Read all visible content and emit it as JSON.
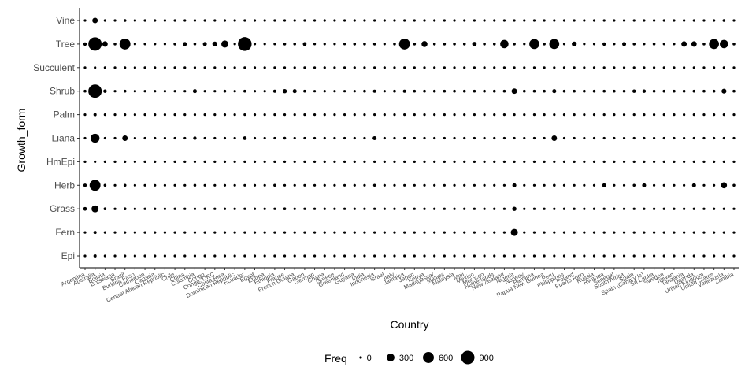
{
  "chart_data": {
    "type": "scatter",
    "xlabel": "Country",
    "ylabel": "Growth_form",
    "categories": [
      "Argentina",
      "Australia",
      "Bolivia",
      "Botswana",
      "Brazil",
      "Burkina Faso",
      "Cameroon",
      "Canada",
      "Central African Republic",
      "Chile",
      "China",
      "Colombia",
      "Congo",
      "Congo, DRC",
      "Costa Rica",
      "Dominican Republic",
      "Ecuador",
      "Egypt",
      "Eritrea",
      "Ethiopia",
      "France",
      "French Guiana",
      "Gabon",
      "German",
      "Ghana",
      "Greece",
      "Greenland",
      "Guyana",
      "India",
      "Indonesia",
      "Israel",
      "Italy",
      "Jamaica",
      "Japan",
      "Kenya",
      "Madagascar",
      "Malawi",
      "Malaysia",
      "Mali",
      "Mexico",
      "Morocco",
      "Netherlands",
      "New Zealand",
      "Nigeria",
      "Norway",
      "Panama",
      "Papua New Guinea",
      "Peru",
      "Philippines",
      "Poland",
      "Puerto Rico",
      "Russia",
      "Rwanda",
      "Senegal",
      "South Africa",
      "Spain",
      "Spain (Canary Is)",
      "Sri Lanka",
      "Sweden",
      "Taiwan",
      "Tanzania",
      "Uganda",
      "United Kingdom",
      "United States",
      "Venezuela",
      "Zambia"
    ],
    "y_categories": [
      "Epi",
      "Fern",
      "Grass",
      "Herb",
      "HmEpi",
      "Liana",
      "Palm",
      "Shrub",
      "Succulent",
      "Tree",
      "Vine"
    ],
    "legend": {
      "title": "Freq",
      "position": "bottom",
      "breaks": [
        0,
        300,
        600,
        900
      ],
      "labels": [
        "0",
        "300",
        "600",
        "900"
      ]
    },
    "grid": false,
    "series": [
      {
        "y": "Vine",
        "values": [
          20,
          150,
          30,
          25,
          40,
          30,
          20,
          15,
          15,
          15,
          20,
          20,
          20,
          15,
          20,
          15,
          20,
          15,
          15,
          20,
          15,
          15,
          15,
          20,
          15,
          15,
          15,
          20,
          20,
          20,
          15,
          20,
          20,
          20,
          20,
          20,
          20,
          20,
          20,
          20,
          20,
          15,
          20,
          20,
          15,
          20,
          20,
          20,
          20,
          15,
          15,
          15,
          20,
          15,
          20,
          20,
          15,
          20,
          15,
          20,
          20,
          20,
          20,
          20,
          40,
          30
        ]
      },
      {
        "y": "Tree",
        "values": [
          60,
          900,
          150,
          40,
          600,
          30,
          30,
          30,
          30,
          40,
          80,
          40,
          80,
          120,
          250,
          30,
          950,
          30,
          30,
          30,
          40,
          40,
          70,
          30,
          30,
          30,
          30,
          40,
          40,
          40,
          30,
          40,
          600,
          40,
          180,
          40,
          40,
          40,
          40,
          100,
          40,
          40,
          350,
          40,
          30,
          500,
          40,
          500,
          30,
          120,
          30,
          30,
          60,
          30,
          80,
          40,
          30,
          40,
          30,
          30,
          150,
          150,
          40,
          500,
          350,
          40
        ]
      },
      {
        "y": "Succulent",
        "values": [
          8,
          25,
          12,
          12,
          15,
          10,
          8,
          8,
          8,
          12,
          12,
          12,
          10,
          8,
          12,
          10,
          10,
          10,
          10,
          12,
          10,
          8,
          8,
          10,
          8,
          8,
          8,
          10,
          10,
          10,
          10,
          12,
          12,
          10,
          12,
          10,
          10,
          10,
          10,
          12,
          10,
          10,
          10,
          10,
          8,
          12,
          12,
          12,
          12,
          10,
          10,
          10,
          10,
          8,
          15,
          12,
          10,
          12,
          10,
          10,
          10,
          10,
          10,
          12,
          12,
          10
        ]
      },
      {
        "y": "Shrub",
        "values": [
          40,
          900,
          60,
          25,
          40,
          25,
          25,
          20,
          20,
          20,
          20,
          80,
          30,
          30,
          40,
          25,
          40,
          25,
          25,
          50,
          90,
          80,
          40,
          30,
          30,
          30,
          30,
          30,
          40,
          50,
          25,
          40,
          50,
          40,
          40,
          40,
          40,
          40,
          40,
          40,
          40,
          40,
          40,
          150,
          40,
          40,
          40,
          80,
          40,
          40,
          40,
          40,
          40,
          40,
          40,
          60,
          60,
          40,
          40,
          40,
          40,
          40,
          40,
          40,
          120,
          40
        ]
      },
      {
        "y": "Palm",
        "values": [
          20,
          50,
          25,
          20,
          30,
          15,
          15,
          10,
          10,
          15,
          20,
          25,
          20,
          15,
          20,
          15,
          20,
          15,
          15,
          20,
          15,
          15,
          15,
          20,
          15,
          15,
          15,
          20,
          20,
          20,
          15,
          20,
          20,
          20,
          20,
          20,
          20,
          20,
          20,
          20,
          20,
          15,
          20,
          20,
          15,
          20,
          20,
          20,
          20,
          15,
          15,
          15,
          20,
          15,
          20,
          20,
          15,
          20,
          15,
          20,
          20,
          20,
          20,
          20,
          20,
          20
        ]
      },
      {
        "y": "Liana",
        "values": [
          30,
          400,
          30,
          30,
          150,
          20,
          20,
          15,
          15,
          20,
          20,
          60,
          30,
          20,
          20,
          30,
          70,
          20,
          20,
          30,
          40,
          30,
          20,
          30,
          20,
          20,
          20,
          30,
          30,
          80,
          20,
          30,
          30,
          30,
          30,
          30,
          30,
          30,
          30,
          30,
          30,
          20,
          30,
          30,
          20,
          30,
          30,
          150,
          30,
          20,
          20,
          20,
          30,
          20,
          30,
          30,
          20,
          30,
          20,
          30,
          30,
          30,
          30,
          30,
          30,
          30
        ]
      },
      {
        "y": "HmEpi",
        "values": [
          10,
          25,
          12,
          10,
          15,
          10,
          10,
          8,
          8,
          10,
          10,
          15,
          10,
          8,
          12,
          10,
          10,
          10,
          10,
          12,
          10,
          8,
          8,
          10,
          8,
          8,
          8,
          10,
          10,
          10,
          10,
          12,
          12,
          10,
          12,
          10,
          10,
          10,
          10,
          12,
          10,
          10,
          10,
          10,
          8,
          12,
          12,
          12,
          12,
          10,
          10,
          10,
          10,
          8,
          15,
          12,
          10,
          12,
          10,
          10,
          10,
          10,
          10,
          12,
          20,
          10
        ]
      },
      {
        "y": "Herb",
        "values": [
          60,
          600,
          40,
          30,
          40,
          25,
          25,
          20,
          20,
          20,
          30,
          40,
          25,
          25,
          30,
          25,
          30,
          25,
          25,
          40,
          30,
          30,
          25,
          30,
          25,
          25,
          25,
          30,
          30,
          40,
          25,
          30,
          30,
          30,
          30,
          30,
          30,
          30,
          30,
          30,
          30,
          25,
          30,
          80,
          30,
          30,
          30,
          40,
          30,
          25,
          30,
          30,
          80,
          30,
          30,
          40,
          80,
          30,
          25,
          30,
          30,
          80,
          30,
          30,
          180,
          40
        ]
      },
      {
        "y": "Grass",
        "values": [
          70,
          250,
          40,
          30,
          40,
          25,
          25,
          20,
          20,
          20,
          25,
          30,
          25,
          25,
          25,
          25,
          25,
          25,
          25,
          30,
          40,
          25,
          25,
          30,
          25,
          25,
          25,
          25,
          30,
          30,
          25,
          30,
          30,
          30,
          30,
          30,
          30,
          30,
          30,
          30,
          30,
          25,
          30,
          90,
          30,
          30,
          30,
          30,
          30,
          25,
          30,
          30,
          30,
          25,
          30,
          30,
          30,
          30,
          25,
          30,
          30,
          30,
          30,
          30,
          30,
          30
        ]
      },
      {
        "y": "Fern",
        "values": [
          15,
          50,
          20,
          20,
          30,
          15,
          15,
          10,
          10,
          15,
          15,
          20,
          15,
          15,
          20,
          15,
          20,
          15,
          15,
          20,
          15,
          15,
          15,
          20,
          15,
          15,
          15,
          20,
          20,
          20,
          15,
          20,
          20,
          20,
          20,
          20,
          20,
          20,
          20,
          20,
          20,
          15,
          20,
          250,
          15,
          20,
          20,
          20,
          20,
          15,
          15,
          15,
          20,
          15,
          20,
          20,
          15,
          20,
          15,
          20,
          20,
          20,
          20,
          20,
          20,
          20
        ]
      },
      {
        "y": "Epi",
        "values": [
          20,
          50,
          25,
          20,
          30,
          15,
          15,
          10,
          10,
          15,
          20,
          25,
          20,
          15,
          20,
          15,
          20,
          15,
          15,
          20,
          15,
          15,
          15,
          20,
          15,
          15,
          15,
          20,
          20,
          20,
          15,
          20,
          20,
          20,
          20,
          20,
          20,
          20,
          20,
          20,
          20,
          15,
          20,
          20,
          15,
          20,
          20,
          20,
          20,
          15,
          15,
          15,
          20,
          15,
          20,
          20,
          15,
          20,
          15,
          20,
          20,
          20,
          20,
          20,
          20,
          20
        ]
      }
    ]
  }
}
